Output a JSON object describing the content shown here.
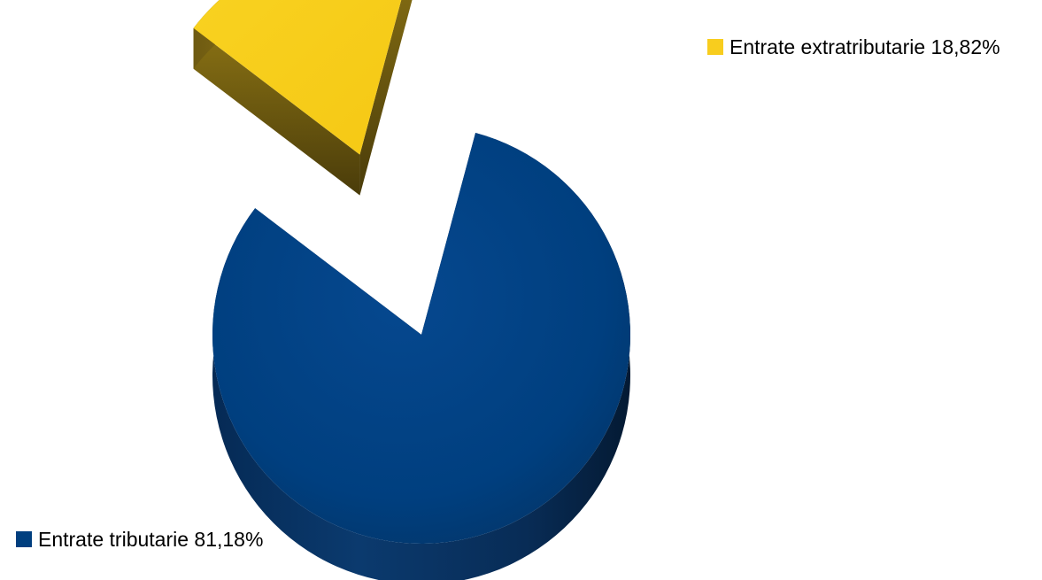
{
  "chart_data": {
    "type": "pie",
    "style": "3d-exploded",
    "title": "",
    "categories": [
      "Entrate tributarie",
      "Entrate extratributarie"
    ],
    "values": [
      81.18,
      18.82
    ],
    "labels": [
      "Entrate tributarie 81,18%",
      "Entrate extratributarie 18,82%"
    ],
    "colors": [
      "#003f7f",
      "#f8cd1e"
    ],
    "exploded": [
      false,
      true
    ],
    "legend": "none",
    "data_labels": "outside"
  }
}
